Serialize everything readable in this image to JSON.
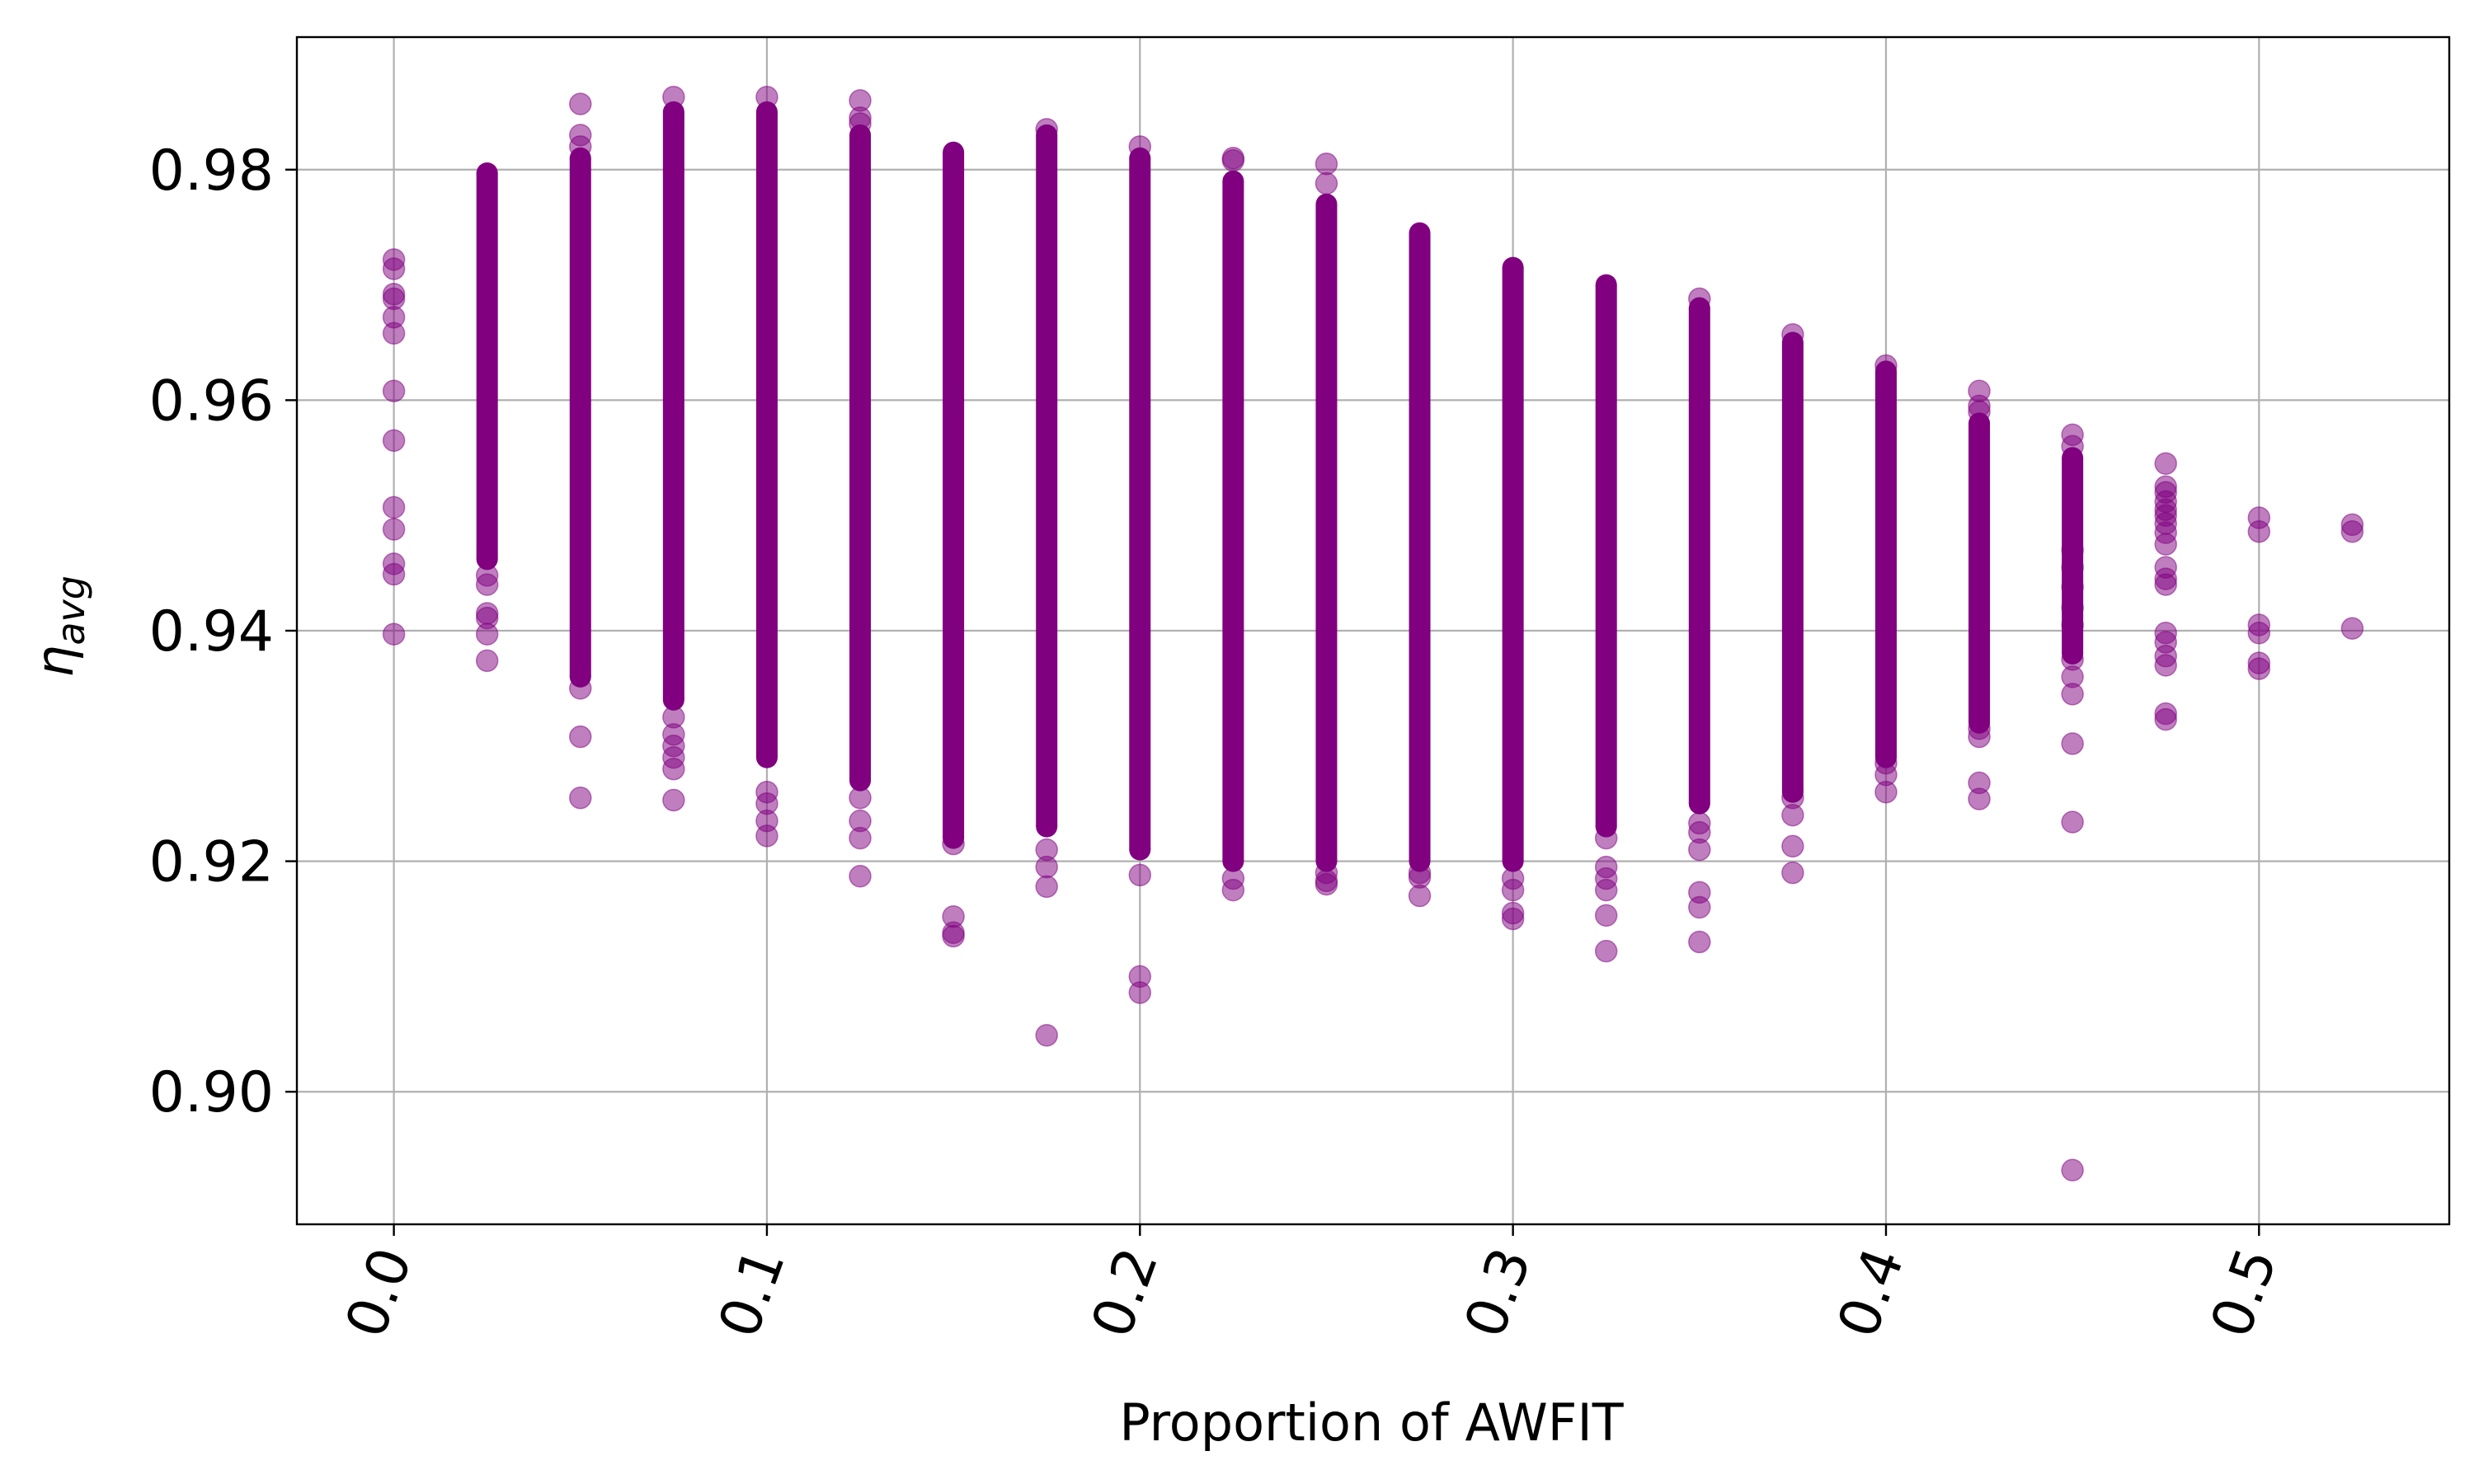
{
  "chart_data": {
    "type": "scatter",
    "xlabel": "Proportion of AWFIT",
    "ylabel_main": "η",
    "ylabel_sub": "avg",
    "xlim": [
      -0.026,
      0.551
    ],
    "ylim": [
      0.8885,
      0.9915
    ],
    "xticks": [
      {
        "value": 0.0,
        "label": "0.0"
      },
      {
        "value": 0.1,
        "label": "0.1"
      },
      {
        "value": 0.2,
        "label": "0.2"
      },
      {
        "value": 0.3,
        "label": "0.3"
      },
      {
        "value": 0.4,
        "label": "0.4"
      },
      {
        "value": 0.5,
        "label": "0.5"
      }
    ],
    "yticks": [
      {
        "value": 0.9,
        "label": "0.90"
      },
      {
        "value": 0.92,
        "label": "0.92"
      },
      {
        "value": 0.94,
        "label": "0.94"
      },
      {
        "value": 0.96,
        "label": "0.96"
      },
      {
        "value": 0.98,
        "label": "0.98"
      }
    ],
    "grid": true,
    "marker_color": "#800080",
    "marker_alpha": 0.5,
    "columns": [
      {
        "x": 0.0,
        "dense": null,
        "points": [
          0.9722,
          0.9714,
          0.9692,
          0.9688,
          0.9672,
          0.9658,
          0.9608,
          0.9565,
          0.9507,
          0.9488,
          0.9458,
          0.9449,
          0.9397
        ]
      },
      {
        "x": 0.025,
        "dense": [
          0.9462,
          0.9797
        ],
        "points": [
          0.9448,
          0.944,
          0.9415,
          0.9411,
          0.9397,
          0.9374
        ]
      },
      {
        "x": 0.05,
        "dense": [
          0.936,
          0.981
        ],
        "points": [
          0.9857,
          0.983,
          0.982,
          0.935,
          0.9308,
          0.9255
        ]
      },
      {
        "x": 0.075,
        "dense": [
          0.934,
          0.985
        ],
        "points": [
          0.9863,
          0.9325,
          0.931,
          0.93,
          0.929,
          0.928,
          0.9253
        ]
      },
      {
        "x": 0.1,
        "dense": [
          0.929,
          0.985
        ],
        "points": [
          0.9863,
          0.926,
          0.925,
          0.9235,
          0.9222
        ]
      },
      {
        "x": 0.125,
        "dense": [
          0.927,
          0.983
        ],
        "points": [
          0.986,
          0.9845,
          0.984,
          0.9255,
          0.9235,
          0.922,
          0.9187
        ]
      },
      {
        "x": 0.15,
        "dense": [
          0.922,
          0.9815
        ],
        "points": [
          0.9215,
          0.9152,
          0.9138,
          0.9135
        ]
      },
      {
        "x": 0.175,
        "dense": [
          0.923,
          0.983
        ],
        "points": [
          0.9835,
          0.921,
          0.9195,
          0.9178,
          0.9049
        ]
      },
      {
        "x": 0.2,
        "dense": [
          0.921,
          0.981
        ],
        "points": [
          0.982,
          0.9188,
          0.91,
          0.9086
        ]
      },
      {
        "x": 0.225,
        "dense": [
          0.92,
          0.979
        ],
        "points": [
          0.981,
          0.9808,
          0.9185,
          0.9175
        ]
      },
      {
        "x": 0.25,
        "dense": [
          0.92,
          0.977
        ],
        "points": [
          0.9805,
          0.9788,
          0.919,
          0.9183,
          0.918
        ]
      },
      {
        "x": 0.275,
        "dense": [
          0.92,
          0.9745
        ],
        "points": [
          0.919,
          0.9186,
          0.917
        ]
      },
      {
        "x": 0.3,
        "dense": [
          0.92,
          0.9715
        ],
        "points": [
          0.9185,
          0.9175,
          0.9155,
          0.915
        ]
      },
      {
        "x": 0.325,
        "dense": [
          0.923,
          0.97
        ],
        "points": [
          0.922,
          0.9195,
          0.9185,
          0.9175,
          0.9153,
          0.9122
        ]
      },
      {
        "x": 0.35,
        "dense": [
          0.925,
          0.968
        ],
        "points": [
          0.9688,
          0.9233,
          0.9225,
          0.921,
          0.9173,
          0.916,
          0.913
        ]
      },
      {
        "x": 0.375,
        "dense": [
          0.926,
          0.965
        ],
        "points": [
          0.9657,
          0.9255,
          0.924,
          0.9213,
          0.919
        ]
      },
      {
        "x": 0.4,
        "dense": [
          0.929,
          0.9625
        ],
        "points": [
          0.963,
          0.9285,
          0.9275,
          0.926
        ]
      },
      {
        "x": 0.425,
        "dense": [
          0.932,
          0.958
        ],
        "points": [
          0.9608,
          0.9595,
          0.959,
          0.9315,
          0.9308,
          0.9268,
          0.9254
        ]
      },
      {
        "x": 0.45,
        "dense": [
          0.938,
          0.955
        ],
        "points": [
          0.957,
          0.956,
          0.947,
          0.9455,
          0.9438,
          0.942,
          0.9405,
          0.9375,
          0.936,
          0.9345,
          0.9302,
          0.9234,
          0.8932
        ]
      },
      {
        "x": 0.475,
        "dense": null,
        "points": [
          0.9545,
          0.9525,
          0.952,
          0.9512,
          0.9505,
          0.95,
          0.9493,
          0.9485,
          0.9475,
          0.9455,
          0.9445,
          0.944,
          0.9398,
          0.939,
          0.9378,
          0.937,
          0.9328,
          0.9323
        ]
      },
      {
        "x": 0.5,
        "dense": null,
        "points": [
          0.9498,
          0.9486,
          0.9405,
          0.9398,
          0.9372,
          0.9367
        ]
      },
      {
        "x": 0.525,
        "dense": null,
        "points": [
          0.9492,
          0.9486,
          0.9402
        ]
      }
    ]
  }
}
